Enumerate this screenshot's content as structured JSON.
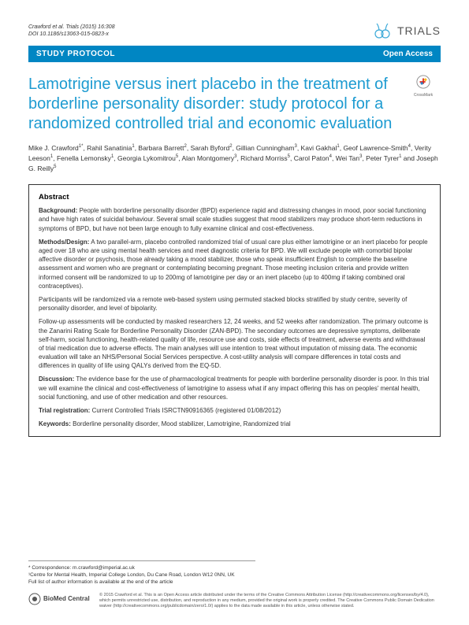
{
  "header": {
    "citation_line1": "Crawford et al. Trials (2015) 16:308",
    "citation_line2": "DOI 10.1186/s13063-015-0823-x",
    "journal_name": "TRIALS",
    "logo_color": "#3ba9d8"
  },
  "banner": {
    "left": "STUDY PROTOCOL",
    "right": "Open Access",
    "bg_color": "#0086c3"
  },
  "crossmark": {
    "label": "CrossMark"
  },
  "title": "Lamotrigine versus inert placebo in the treatment of borderline personality disorder: study protocol for a randomized controlled trial and economic evaluation",
  "title_color": "#1d9bd1",
  "authors_html": "Mike J. Crawford<sup>1*</sup>, Rahil Sanatinia<sup>1</sup>, Barbara Barrett<sup>2</sup>, Sarah Byford<sup>2</sup>, Gillian Cunningham<sup>3</sup>, Kavi Gakhal<sup>1</sup>, Geof Lawrence-Smith<sup>4</sup>, Verity Leeson<sup>1</sup>, Fenella Lemonsky<sup>1</sup>, Georgia Lykomitrou<sup>5</sup>, Alan Montgomery<sup>3</sup>, Richard Morriss<sup>5</sup>, Carol Paton<sup>4</sup>, Wei Tan<sup>3</sup>, Peter Tyrer<sup>1</sup> and Joseph G. Reilly<sup>5</sup>",
  "abstract": {
    "heading": "Abstract",
    "background_label": "Background:",
    "background_text": " People with borderline personality disorder (BPD) experience rapid and distressing changes in mood, poor social functioning and have high rates of suicidal behaviour. Several small scale studies suggest that mood stabilizers may produce short-term reductions in symptoms of BPD, but have not been large enough to fully examine clinical and cost-effectiveness.",
    "methods_label": "Methods/Design:",
    "methods_text": " A two parallel-arm, placebo controlled randomized trial of usual care plus either lamotrigine or an inert placebo for people aged over 18 who are using mental health services and meet diagnostic criteria for BPD. We will exclude people with comorbid bipolar affective disorder or psychosis, those already taking a mood stabilizer, those who speak insufficient English to complete the baseline assessment and women who are pregnant or contemplating becoming pregnant. Those meeting inclusion criteria and provide written informed consent will be randomized to up to 200mg of lamotrigine per day or an inert placebo (up to 400mg if taking combined oral contraceptives).",
    "methods_p2": "Participants will be randomized via a remote web-based system using permuted stacked blocks stratified by study centre, severity of personality disorder, and level of bipolarity.",
    "methods_p3": "Follow-up assessments will be conducted by masked researchers 12, 24 weeks, and 52 weeks after randomization. The primary outcome is the Zanarini Rating Scale for Borderline Personality Disorder (ZAN-BPD). The secondary outcomes are depressive symptoms, deliberate self-harm, social functioning, health-related quality of life, resource use and costs, side effects of treatment, adverse events and withdrawal of trial medication due to adverse effects. The main analyses will use intention to treat without imputation of missing data. The economic evaluation will take an NHS/Personal Social Services perspective. A cost-utility analysis will compare differences in total costs and differences in quality of life using QALYs derived from the EQ-5D.",
    "discussion_label": "Discussion:",
    "discussion_text": " The evidence base for the use of pharmacological treatments for people with borderline personality disorder is poor. In this trial we will examine the clinical and cost-effectiveness of lamotrigine to assess what if any impact offering this has on peoples' mental health, social functioning, and use of other medication and other resources.",
    "registration_label": "Trial registration:",
    "registration_text": " Current Controlled Trials ISRCTN90916365 (registered 01/08/2012)",
    "keywords_label": "Keywords:",
    "keywords_text": " Borderline personality disorder, Mood stabilizer, Lamotrigine, Randomized trial"
  },
  "footer": {
    "corr_line1": "* Correspondence: m.crawford@imperial.ac.uk",
    "corr_line2": "¹Centre for Mental Health, Imperial College London, Du Cane Road, London W12 0NN, UK",
    "corr_line3": "Full list of author information is available at the end of the article",
    "bmc_text": "BioMed Central",
    "license": "© 2015 Crawford et al. This is an Open Access article distributed under the terms of the Creative Commons Attribution License (http://creativecommons.org/licenses/by/4.0), which permits unrestricted use, distribution, and reproduction in any medium, provided the original work is properly credited. The Creative Commons Public Domain Dedication waiver (http://creativecommons.org/publicdomain/zero/1.0/) applies to the data made available in this article, unless otherwise stated."
  }
}
